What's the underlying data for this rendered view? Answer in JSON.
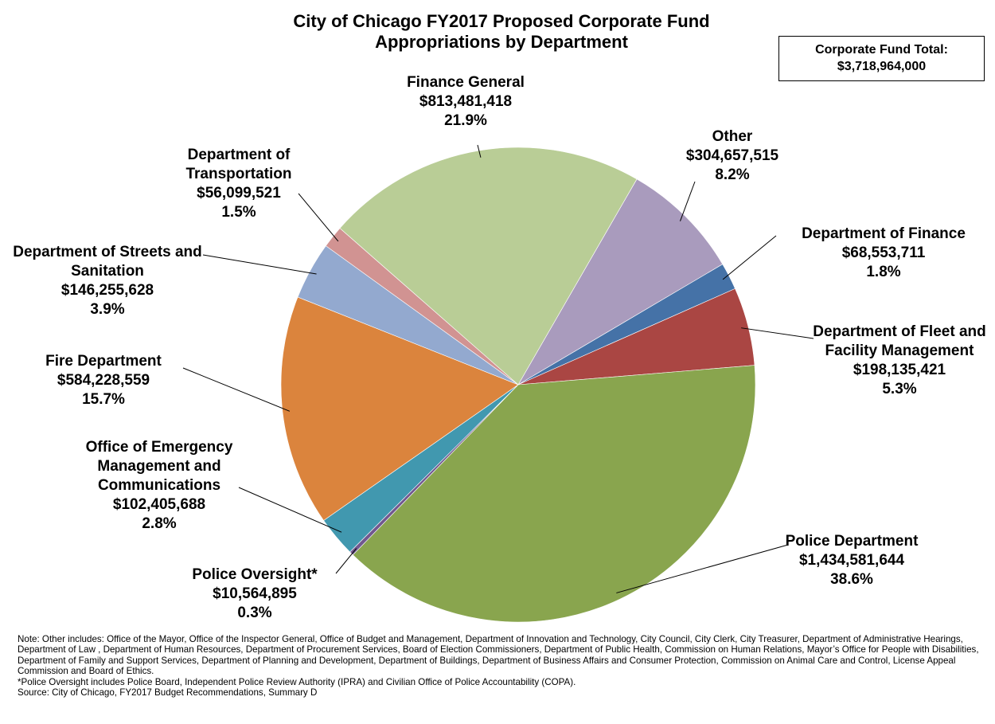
{
  "chart_data": {
    "type": "pie",
    "title": "City of Chicago FY2017 Proposed Corporate Fund Appropriations by Department",
    "total_label": "Corporate Fund Total:",
    "total_value": 3718964000,
    "total_value_label": "$3,718,964,000",
    "categories": [
      "Other",
      "Department of Finance",
      "Department of Fleet and Facility Management",
      "Police Department",
      "Police Oversight*",
      "Office of Emergency Management and Communications",
      "Fire Department",
      "Department of Streets and Sanitation",
      "Department of Transportation",
      "Finance General"
    ],
    "values": [
      304657515,
      68553711,
      198135421,
      1434581644,
      10564895,
      102405688,
      584228559,
      146255628,
      56099521,
      813481418
    ],
    "value_labels": [
      "$304,657,515",
      "$68,553,711",
      "$198,135,421",
      "$1,434,581,644",
      "$10,564,895",
      "$102,405,688",
      "$584,228,559",
      "$146,255,628",
      "$56,099,521",
      "$813,481,418"
    ],
    "percentages": [
      8.2,
      1.8,
      5.3,
      38.6,
      0.3,
      2.8,
      15.7,
      3.9,
      1.5,
      21.9
    ],
    "percentage_labels": [
      "8.2%",
      "1.8%",
      "5.3%",
      "38.6%",
      "0.3%",
      "2.8%",
      "15.7%",
      "3.9%",
      "1.5%",
      "21.9%"
    ],
    "colors": [
      "#a99bbd",
      "#4572a7",
      "#aa4643",
      "#89a54e",
      "#71588f",
      "#4198af",
      "#db843d",
      "#93a9cf",
      "#d19392",
      "#b9cd96"
    ],
    "notes": [
      "Note: Other includes: Office of the Mayor, Office of the Inspector General, Office of Budget and Management, Department of Innovation and Technology, City Council, City Clerk, City Treasurer, Department of Administrative Hearings, Department of Law , Department of Human Resources, Department of Procurement Services, Board of Election Commissioners, Department of Public Health, Commission on Human Relations, Mayor’s Office for People with Disabilities, Department of Family and Support Services, Department of Planning and Development, Department of Buildings, Department of Business Affairs and Consumer Protection, Commission on Animal Care and Control, License Appeal Commission and Board of Ethics.",
      "*Police Oversight includes Police Board, Independent Police Review Authority (IPRA) and Civilian Office of Police Accountability (COPA).",
      "Source: City of Chicago, FY2017 Budget Recommendations, Summary D"
    ]
  }
}
